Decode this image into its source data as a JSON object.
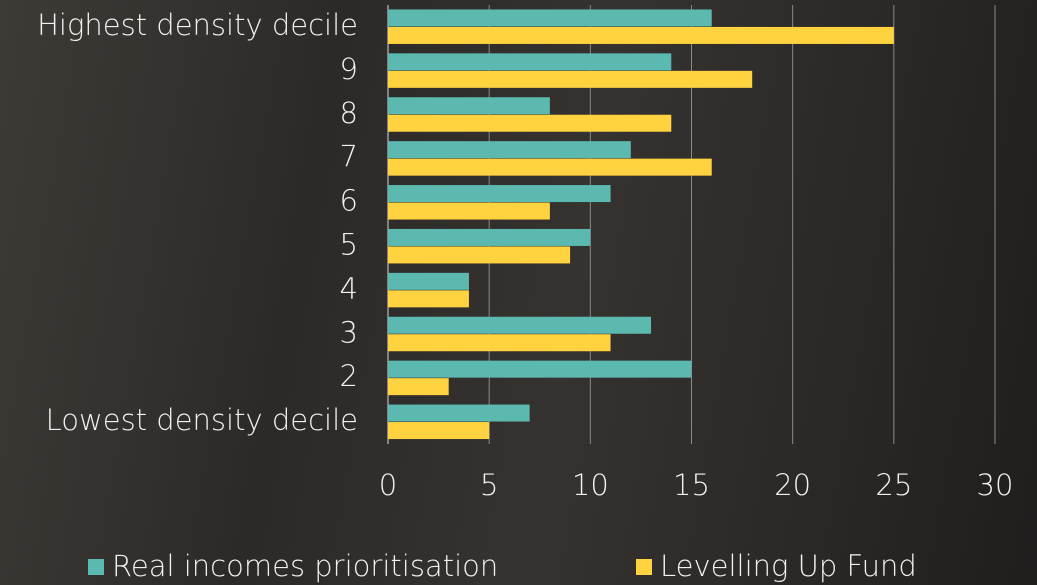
{
  "chart_data": {
    "type": "hbar",
    "categories": [
      "Highest density decile",
      "9",
      "8",
      "7",
      "6",
      "5",
      "4",
      "3",
      "2",
      "Lowest density decile"
    ],
    "series": [
      {
        "name": "Real incomes prioritisation",
        "color": "#5bb9b0",
        "values": [
          16,
          14,
          8,
          12,
          11,
          10,
          4,
          13,
          15,
          7
        ]
      },
      {
        "name": "Levelling Up Fund",
        "color": "#ffd23f",
        "values": [
          25,
          18,
          14,
          16,
          8,
          9,
          4,
          11,
          3,
          5
        ]
      }
    ],
    "xlim": [
      0,
      30
    ],
    "xticks": [
      0,
      5,
      10,
      15,
      20,
      25,
      30
    ],
    "grid": true
  }
}
